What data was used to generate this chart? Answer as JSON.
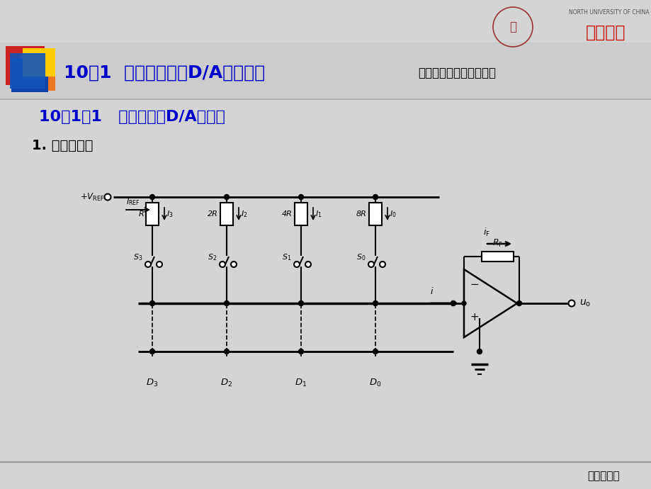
{
  "bg_color": "#d8d8d8",
  "title_text": "10．1  数模转换器（D/A转换器）",
  "title_color": "#0000cc",
  "subtitle_right": "电子技术课程多媒体课件",
  "subtitle_right_color": "#000000",
  "section_title": "10．1．1   权电阵网络D/A转换器",
  "section_title_color": "#0000cc",
  "subsection_title": "1. 电路原理图",
  "subsection_title_color": "#000000",
  "footer_text": "返回主目录",
  "footer_color": "#000000",
  "univ_text": "中北大学",
  "univ_label": "NORTH UNIVERSITY OF CHINA"
}
